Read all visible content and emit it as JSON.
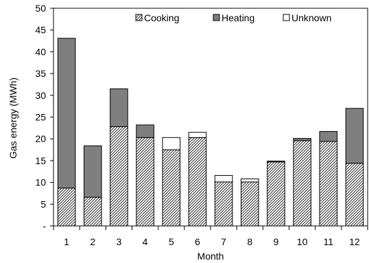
{
  "chart_data": {
    "type": "bar",
    "stacked": true,
    "categories": [
      "1",
      "2",
      "3",
      "4",
      "5",
      "6",
      "7",
      "8",
      "9",
      "10",
      "11",
      "12"
    ],
    "series": [
      {
        "name": "Cooking",
        "pattern": "diagonal-hatch",
        "color": "#ffffff",
        "values": [
          8.7,
          6.6,
          22.8,
          20.3,
          17.5,
          20.3,
          10.1,
          10.1,
          14.7,
          19.6,
          19.4,
          14.4
        ]
      },
      {
        "name": "Heating",
        "pattern": "solid",
        "color": "#7f7f7f",
        "values": [
          34.4,
          11.8,
          8.7,
          2.9,
          0,
          0,
          0,
          0,
          0.2,
          0.5,
          2.3,
          12.6
        ]
      },
      {
        "name": "Unknown",
        "pattern": "solid",
        "color": "#ffffff",
        "values": [
          0,
          0,
          0,
          0,
          2.8,
          1.2,
          1.5,
          0.7,
          0,
          0,
          0,
          0
        ]
      }
    ],
    "xlabel": "Month",
    "ylabel": "Gas energy (MWh)",
    "ylim": [
      0,
      50
    ],
    "yticks": [
      0,
      5,
      10,
      15,
      20,
      25,
      30,
      35,
      40,
      45,
      50
    ],
    "ytick_labels": [
      "-",
      "5",
      "10",
      "15",
      "20",
      "25",
      "30",
      "35",
      "40",
      "45",
      "50"
    ],
    "legend_position": "top-right",
    "grid": false
  }
}
